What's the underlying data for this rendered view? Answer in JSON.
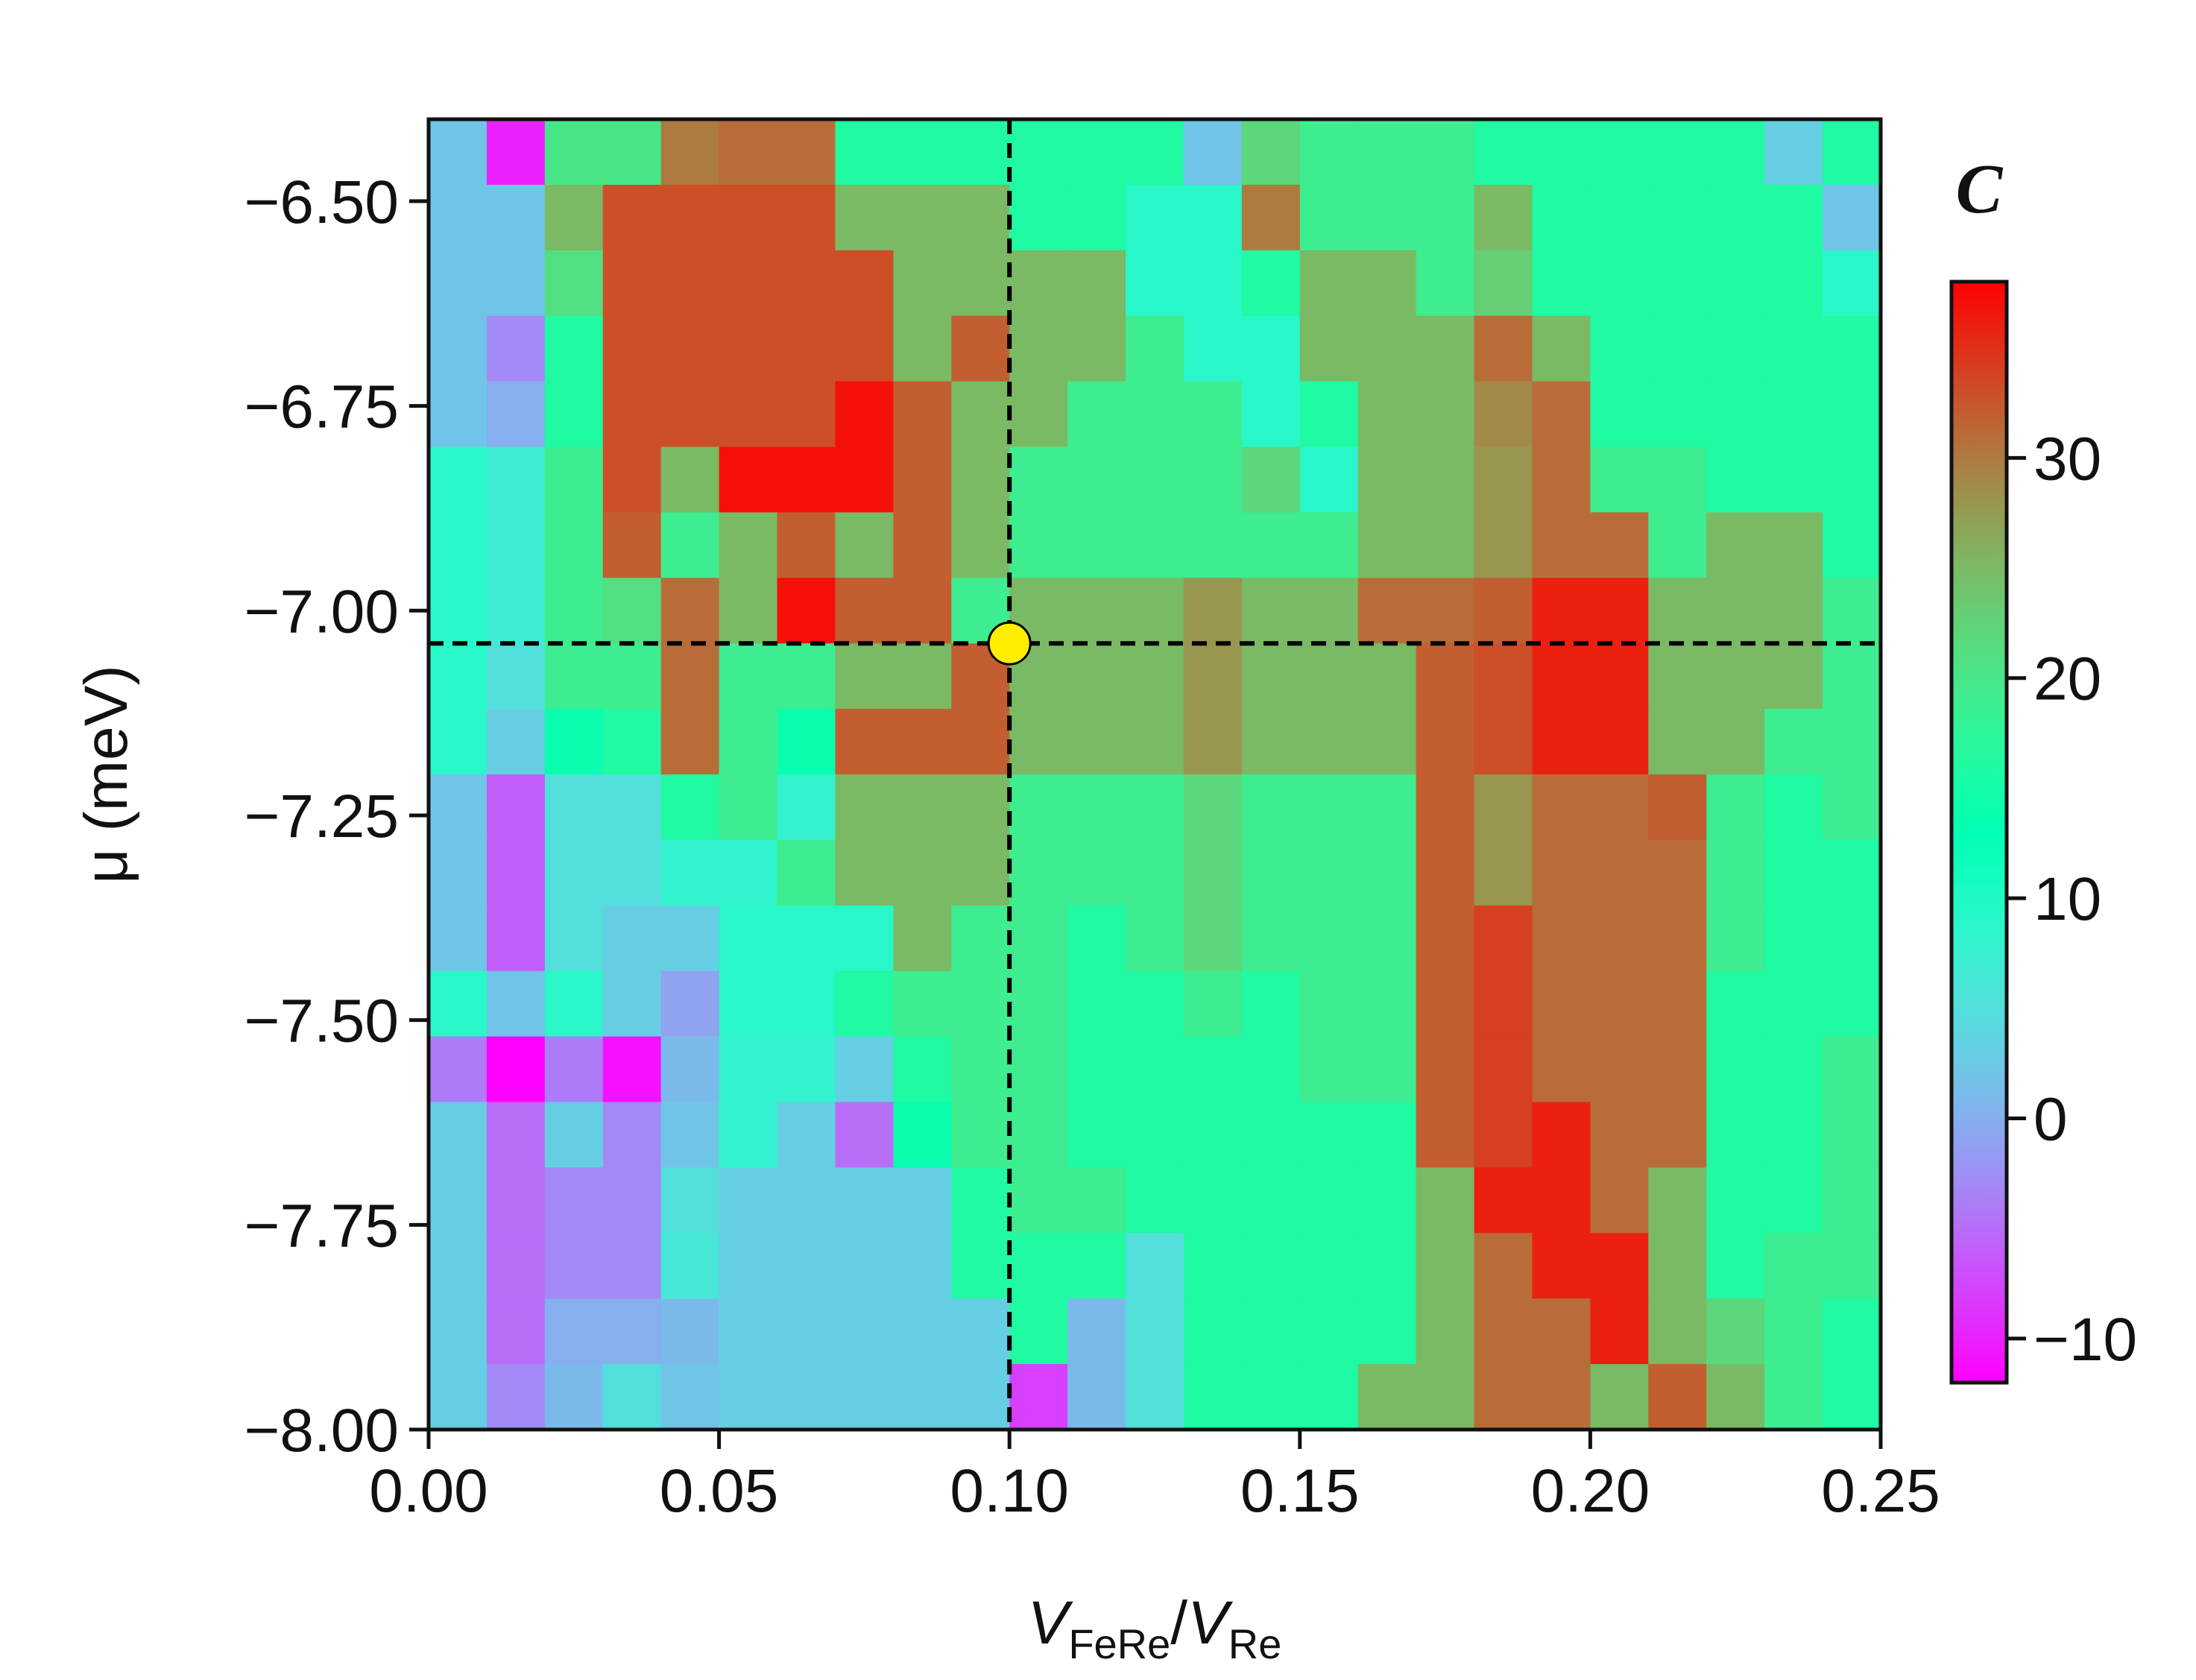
{
  "chart_data": {
    "type": "heatmap",
    "xlabel": {
      "main": "V",
      "sub1": "FeRe",
      "slash": "/",
      "main2": "V",
      "sub2": "Re"
    },
    "ylabel": "μ (meV)",
    "xlim": [
      0.0,
      0.25
    ],
    "ylim": [
      -8.0,
      -6.4
    ],
    "x_ticks": [
      0.0,
      0.05,
      0.1,
      0.15,
      0.2,
      0.25
    ],
    "x_tick_labels": [
      "0.00",
      "0.05",
      "0.10",
      "0.15",
      "0.20",
      "0.25"
    ],
    "y_ticks": [
      -6.5,
      -6.75,
      -7.0,
      -7.25,
      -7.5,
      -7.75,
      -8.0
    ],
    "y_tick_labels": [
      "−6.50",
      "−6.75",
      "−7.00",
      "−7.25",
      "−7.50",
      "−7.75",
      "−8.00"
    ],
    "x_cells": [
      0.005,
      0.015,
      0.025,
      0.035,
      0.045,
      0.055,
      0.065,
      0.075,
      0.085,
      0.095,
      0.105,
      0.115,
      0.125,
      0.135,
      0.145,
      0.155,
      0.165,
      0.175,
      0.185,
      0.195,
      0.205,
      0.215,
      0.225,
      0.235,
      0.245
    ],
    "y_cells": [
      -6.44,
      -6.52,
      -6.6,
      -6.68,
      -6.76,
      -6.84,
      -6.92,
      -7.0,
      -7.08,
      -7.16,
      -7.24,
      -7.32,
      -7.4,
      -7.48,
      -7.56,
      -7.64,
      -7.72,
      -7.8,
      -7.88,
      -7.96
    ],
    "z": [
      [
        2,
        -10,
        20,
        20,
        30,
        31,
        31,
        16,
        16,
        16,
        16,
        16,
        16,
        2,
        22,
        19,
        19,
        19,
        16,
        16,
        16,
        16,
        16,
        3,
        16
      ],
      [
        2,
        2,
        25,
        33,
        33,
        33,
        33,
        25,
        25,
        25,
        16,
        16,
        9,
        9,
        30,
        19,
        19,
        19,
        25,
        16,
        16,
        16,
        16,
        16,
        2
      ],
      [
        2,
        2,
        21,
        33,
        33,
        33,
        33,
        33,
        25,
        25,
        25,
        25,
        9,
        9,
        16,
        25,
        25,
        19,
        23,
        16,
        16,
        16,
        16,
        16,
        9
      ],
      [
        2,
        -3,
        16,
        33,
        33,
        33,
        33,
        33,
        25,
        32,
        25,
        25,
        19,
        9,
        9,
        25,
        25,
        25,
        31,
        25,
        16,
        16,
        16,
        16,
        16
      ],
      [
        2,
        0,
        16,
        33,
        33,
        33,
        33,
        37,
        32,
        25,
        25,
        19,
        19,
        19,
        9,
        16,
        25,
        25,
        29,
        31,
        16,
        16,
        16,
        16,
        16
      ],
      [
        9,
        7,
        19,
        33,
        25,
        37,
        37,
        37,
        32,
        25,
        19,
        19,
        19,
        19,
        22,
        9,
        25,
        25,
        28,
        31,
        19,
        19,
        16,
        16,
        16
      ],
      [
        9,
        7,
        19,
        32,
        19,
        25,
        32,
        25,
        32,
        25,
        19,
        19,
        19,
        19,
        19,
        19,
        25,
        25,
        28,
        31,
        31,
        19,
        25,
        25,
        16
      ],
      [
        9,
        7,
        19,
        21,
        31,
        25,
        37,
        32,
        32,
        19,
        25,
        25,
        25,
        28,
        25,
        25,
        31,
        31,
        32,
        36,
        36,
        25,
        25,
        25,
        19
      ],
      [
        9,
        5,
        19,
        19,
        31,
        19,
        19,
        25,
        25,
        32,
        25,
        25,
        25,
        28,
        25,
        25,
        25,
        32,
        33,
        36,
        36,
        25,
        25,
        25,
        19
      ],
      [
        9,
        3,
        14,
        16,
        31,
        19,
        14,
        32,
        32,
        32,
        25,
        25,
        25,
        28,
        25,
        25,
        25,
        32,
        33,
        36,
        36,
        25,
        25,
        19,
        19
      ],
      [
        2,
        -6,
        5,
        5,
        16,
        19,
        8,
        25,
        25,
        25,
        19,
        19,
        19,
        22,
        19,
        19,
        19,
        32,
        28,
        31,
        31,
        32,
        19,
        16,
        19
      ],
      [
        2,
        -6,
        5,
        5,
        8,
        8,
        19,
        25,
        25,
        25,
        19,
        19,
        19,
        22,
        19,
        19,
        19,
        32,
        28,
        31,
        31,
        31,
        19,
        16,
        16
      ],
      [
        2,
        -6,
        5,
        3,
        3,
        9,
        9,
        9,
        25,
        19,
        19,
        16,
        19,
        22,
        19,
        19,
        19,
        32,
        34,
        31,
        31,
        31,
        19,
        16,
        16
      ],
      [
        9,
        2,
        9,
        3,
        -1,
        9,
        9,
        16,
        19,
        19,
        19,
        16,
        16,
        19,
        16,
        19,
        19,
        32,
        34,
        31,
        31,
        31,
        16,
        16,
        16
      ],
      [
        -4,
        -12,
        -4,
        -11,
        1,
        8,
        8,
        3,
        16,
        19,
        19,
        16,
        16,
        16,
        16,
        19,
        19,
        32,
        34,
        31,
        31,
        31,
        16,
        16,
        19
      ],
      [
        3,
        -5,
        3,
        -3,
        2,
        8,
        3,
        -5,
        14,
        19,
        19,
        16,
        16,
        16,
        16,
        16,
        16,
        32,
        34,
        36,
        31,
        31,
        16,
        16,
        19
      ],
      [
        3,
        -5,
        -3,
        -3,
        5,
        3,
        3,
        3,
        3,
        16,
        19,
        19,
        16,
        16,
        16,
        16,
        16,
        25,
        36,
        36,
        31,
        25,
        16,
        16,
        19
      ],
      [
        3,
        -5,
        -3,
        -3,
        6,
        3,
        3,
        3,
        3,
        16,
        16,
        16,
        5,
        16,
        16,
        16,
        16,
        25,
        31,
        36,
        36,
        25,
        16,
        19,
        19
      ],
      [
        3,
        -5,
        0,
        0,
        1,
        3,
        3,
        3,
        3,
        3,
        16,
        1,
        5,
        16,
        16,
        16,
        16,
        25,
        31,
        31,
        36,
        25,
        22,
        19,
        16
      ],
      [
        3,
        -3,
        1,
        5,
        2,
        3,
        3,
        3,
        3,
        3,
        -8,
        1,
        5,
        16,
        16,
        16,
        25,
        25,
        31,
        31,
        25,
        32,
        25,
        19,
        16
      ]
    ],
    "colorbar": {
      "label": "C",
      "range": [
        -12,
        38
      ],
      "ticks": [
        -10,
        0,
        10,
        20,
        30
      ],
      "tick_labels": [
        "−10",
        "0",
        "10",
        "20",
        "30"
      ],
      "colormap": "rainbow"
    },
    "crosshair": {
      "x": 0.1,
      "y": -7.04,
      "marker_color": "#ffee00",
      "line_style": "dashed"
    }
  }
}
